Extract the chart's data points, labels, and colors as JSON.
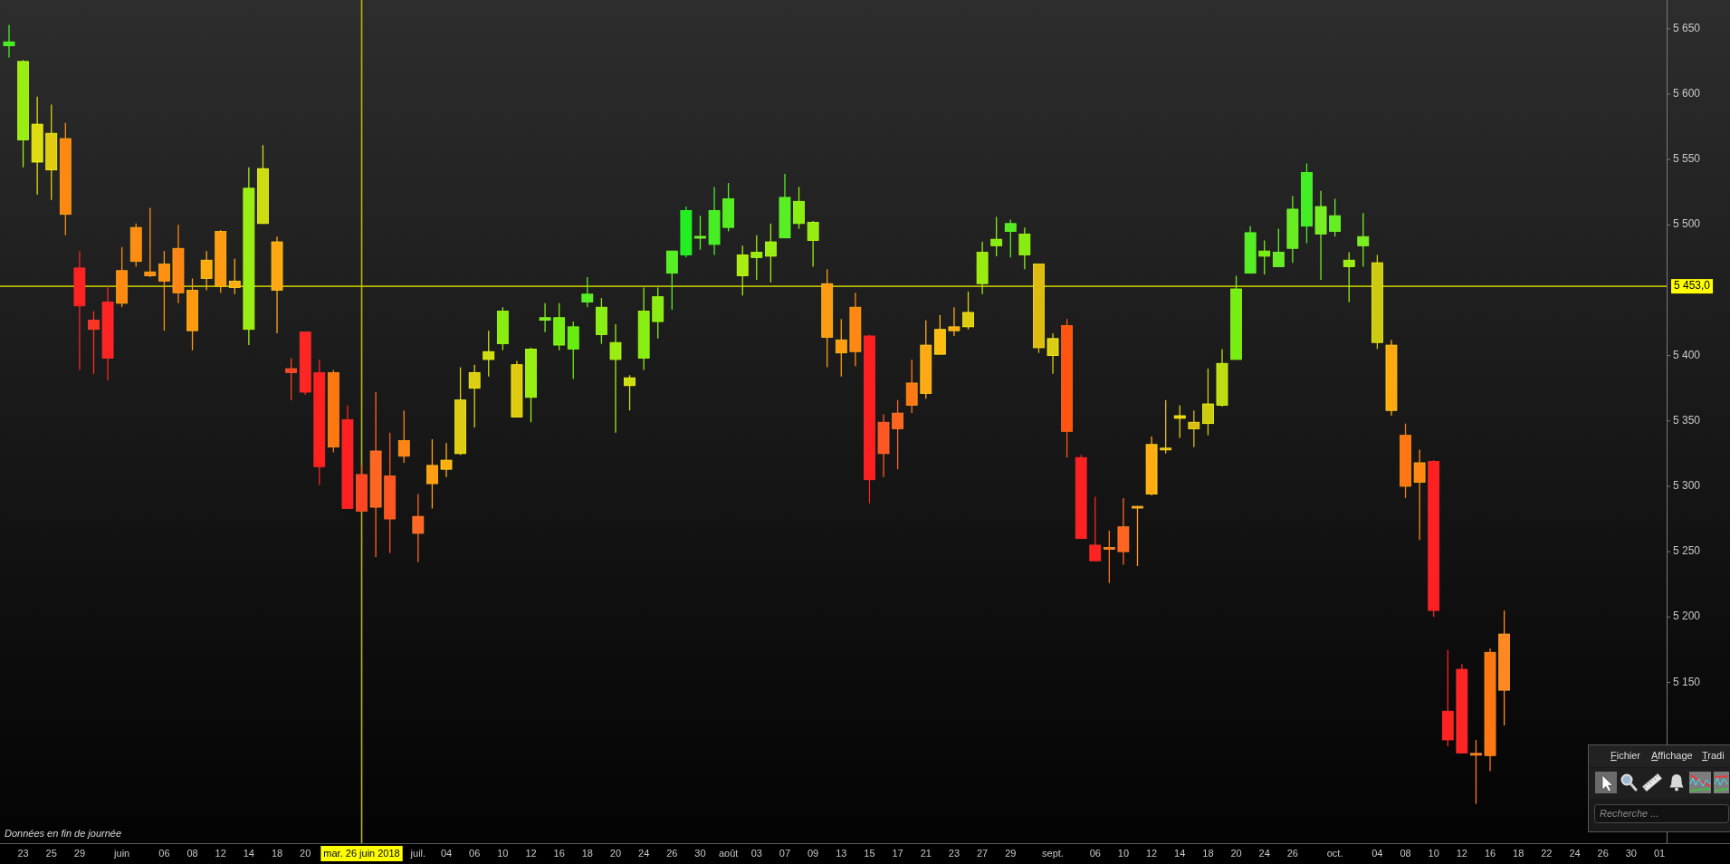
{
  "chart_data": {
    "type": "candlestick",
    "categories": [
      null,
      "23",
      null,
      "25",
      null,
      "29",
      null,
      null,
      "juin",
      null,
      null,
      "06",
      null,
      "08",
      null,
      "12",
      null,
      "14",
      null,
      "18",
      null,
      "20",
      null,
      null,
      null,
      "mar. 26 juin 2018",
      null,
      null,
      null,
      "juil.",
      null,
      "04",
      null,
      "06",
      null,
      "10",
      null,
      "12",
      null,
      "16",
      null,
      "18",
      null,
      "20",
      null,
      "24",
      null,
      "26",
      null,
      "30",
      null,
      "août",
      null,
      "03",
      null,
      "07",
      null,
      "09",
      null,
      "13",
      null,
      "15",
      null,
      "17",
      null,
      "21",
      null,
      "23",
      null,
      "27",
      null,
      "29",
      null,
      null,
      "sept.",
      null,
      null,
      "06",
      null,
      "10",
      null,
      "12",
      null,
      "14",
      null,
      "18",
      null,
      "20",
      null,
      "24",
      null,
      "26",
      null,
      null,
      "oct.",
      null,
      null,
      "04",
      null,
      "08",
      null,
      "10",
      null,
      "12",
      null,
      "16",
      null,
      "18",
      null,
      "22",
      null,
      "24",
      null,
      "26",
      null,
      "30",
      null,
      "01"
    ],
    "ohlc": [
      [
        5637,
        5653,
        5628,
        5640
      ],
      [
        5625,
        5626,
        5544,
        5565
      ],
      [
        5577,
        5598,
        5523,
        5548
      ],
      [
        5570,
        5592,
        5519,
        5542
      ],
      [
        5566,
        5578,
        5492,
        5508
      ],
      [
        5467,
        5480,
        5389,
        5438
      ],
      [
        5427,
        5434,
        5386,
        5420
      ],
      [
        5441,
        5453,
        5381,
        5398
      ],
      [
        5440,
        5483,
        5437,
        5465
      ],
      [
        5472,
        5501,
        5468,
        5498
      ],
      [
        5464,
        5513,
        5460,
        5461
      ],
      [
        5457,
        5480,
        5419,
        5470
      ],
      [
        5482,
        5500,
        5440,
        5448
      ],
      [
        5450,
        5459,
        5404,
        5419
      ],
      [
        5459,
        5480,
        5450,
        5473
      ],
      [
        5495,
        5496,
        5448,
        5453
      ],
      [
        5452,
        5474,
        5447,
        5457
      ],
      [
        5420,
        5544,
        5408,
        5528
      ],
      [
        5543,
        5561,
        5501,
        5501
      ],
      [
        5487,
        5491,
        5417,
        5450
      ],
      [
        5390,
        5398,
        5366,
        5387
      ],
      [
        5372,
        5418,
        5370,
        5418
      ],
      [
        5387,
        5397,
        5301,
        5315
      ],
      [
        5330,
        5389,
        5326,
        5387
      ],
      [
        5351,
        5362,
        5283,
        5283
      ],
      [
        5281,
        5316,
        5281,
        5309
      ],
      [
        5327,
        5372,
        5246,
        5284
      ],
      [
        5275,
        5341,
        5249,
        5308
      ],
      [
        5323,
        5358,
        5318,
        5335
      ],
      [
        5277,
        5294,
        5242,
        5264
      ],
      [
        5302,
        5336,
        5283,
        5316
      ],
      [
        5313,
        5333,
        5307,
        5320
      ],
      [
        5325,
        5391,
        5324,
        5366
      ],
      [
        5375,
        5393,
        5345,
        5387
      ],
      [
        5397,
        5419,
        5384,
        5403
      ],
      [
        5409,
        5437,
        5404,
        5434
      ],
      [
        5393,
        5396,
        5353,
        5353
      ],
      [
        5368,
        5406,
        5349,
        5405
      ],
      [
        5427,
        5440,
        5418,
        5429
      ],
      [
        5429,
        5440,
        5404,
        5408
      ],
      [
        5405,
        5426,
        5382,
        5422
      ],
      [
        5441,
        5460,
        5437,
        5447
      ],
      [
        5437,
        5444,
        5409,
        5416
      ],
      [
        5410,
        5424,
        5341,
        5397
      ],
      [
        5383,
        5385,
        5358,
        5377
      ],
      [
        5398,
        5452,
        5389,
        5434
      ],
      [
        5426,
        5452,
        5413,
        5445
      ],
      [
        5463,
        5480,
        5435,
        5480
      ],
      [
        5477,
        5514,
        5475,
        5511
      ],
      [
        5491,
        5507,
        5481,
        5490
      ],
      [
        5485,
        5529,
        5477,
        5511
      ],
      [
        5520,
        5532,
        5495,
        5498
      ],
      [
        5477,
        5484,
        5446,
        5461
      ],
      [
        5475,
        5492,
        5458,
        5479
      ],
      [
        5476,
        5501,
        5456,
        5487
      ],
      [
        5490,
        5539,
        5490,
        5521
      ],
      [
        5518,
        5529,
        5497,
        5501
      ],
      [
        5502,
        5503,
        5468,
        5488
      ],
      [
        5455,
        5466,
        5391,
        5414
      ],
      [
        5412,
        5428,
        5384,
        5402
      ],
      [
        5403,
        5448,
        5392,
        5437
      ],
      [
        5415,
        5416,
        5287,
        5305
      ],
      [
        5325,
        5355,
        5307,
        5349
      ],
      [
        5344,
        5366,
        5313,
        5356
      ],
      [
        5362,
        5397,
        5356,
        5379
      ],
      [
        5371,
        5427,
        5367,
        5408
      ],
      [
        5401,
        5431,
        5401,
        5420
      ],
      [
        5419,
        5437,
        5415,
        5422
      ],
      [
        5422,
        5449,
        5420,
        5433
      ],
      [
        5455,
        5487,
        5447,
        5479
      ],
      [
        5484,
        5506,
        5476,
        5489
      ],
      [
        5495,
        5504,
        5475,
        5501
      ],
      [
        5493,
        5498,
        5466,
        5477
      ],
      [
        5470,
        5470,
        5402,
        5406
      ],
      [
        5400,
        5417,
        5386,
        5413
      ],
      [
        5423,
        5428,
        5322,
        5342
      ],
      [
        5322,
        5324,
        5260,
        5260
      ],
      [
        5255,
        5292,
        5243,
        5243
      ],
      [
        5253,
        5266,
        5226,
        5252
      ],
      [
        5250,
        5291,
        5240,
        5269
      ],
      [
        5284,
        5285,
        5239,
        5284
      ],
      [
        5294,
        5338,
        5293,
        5332
      ],
      [
        5329,
        5366,
        5325,
        5328
      ],
      [
        5352,
        5362,
        5337,
        5354
      ],
      [
        5349,
        5358,
        5330,
        5344
      ],
      [
        5348,
        5390,
        5339,
        5363
      ],
      [
        5362,
        5405,
        5361,
        5394
      ],
      [
        5397,
        5461,
        5397,
        5451
      ],
      [
        5463,
        5499,
        5463,
        5494
      ],
      [
        5480,
        5488,
        5462,
        5476
      ],
      [
        5479,
        5497,
        5468,
        5468
      ],
      [
        5482,
        5522,
        5471,
        5512
      ],
      [
        5499,
        5547,
        5486,
        5540
      ],
      [
        5514,
        5526,
        5458,
        5493
      ],
      [
        5495,
        5520,
        5491,
        5507
      ],
      [
        5473,
        5479,
        5441,
        5468
      ],
      [
        5484,
        5509,
        5468,
        5491
      ],
      [
        5471,
        5477,
        5405,
        5410
      ],
      [
        5408,
        5412,
        5354,
        5358
      ],
      [
        5339,
        5348,
        5291,
        5300
      ],
      [
        5303,
        5328,
        5259,
        5318
      ],
      [
        5319,
        5320,
        5200,
        5205
      ],
      [
        5128,
        5175,
        5101,
        5106
      ],
      [
        5160,
        5164,
        5096,
        5096
      ],
      [
        5095,
        5106,
        5057,
        5095
      ],
      [
        5094,
        5176,
        5082,
        5173
      ],
      [
        5187,
        5205,
        5117,
        5144
      ],
      null,
      null,
      null,
      null,
      null,
      null,
      null,
      null,
      null,
      null,
      null
    ],
    "colors": [
      "#44ee22",
      "#99ee11",
      "#dddd11",
      "#ddcc11",
      "#ff8811",
      "#ff2222",
      "#ff3322",
      "#ff2424",
      "#ff8a12",
      "#ff8c14",
      "#ff8e13",
      "#ff9012",
      "#ff8614",
      "#ff9911",
      "#ffaa11",
      "#ff9b12",
      "#ffac13",
      "#99ee13",
      "#ccdd11",
      "#ffa812",
      "#ff4422",
      "#ff2623",
      "#ff2020",
      "#ff7711",
      "#ff2121",
      "#ff4624",
      "#ff6622",
      "#ff5522",
      "#ff8416",
      "#ff6824",
      "#ff9d13",
      "#ffae12",
      "#ddcc13",
      "#dcce12",
      "#ccdd13",
      "#88ee11",
      "#deca11",
      "#98ef12",
      "#77ee22",
      "#77ee11",
      "#66ee11",
      "#55ee22",
      "#88ee13",
      "#9aed11",
      "#cbde12",
      "#87ef12",
      "#89ed12",
      "#56ef23",
      "#22ee22",
      "#66ee22",
      "#45ef23",
      "#54ed21",
      "#aaee11",
      "#97ee13",
      "#9bee12",
      "#57ee22",
      "#8aee11",
      "#96ed12",
      "#ff9a14",
      "#ff9c11",
      "#ff8812",
      "#fe2020",
      "#ff5724",
      "#ff6420",
      "#ff7913",
      "#ffa914",
      "#ffbb11",
      "#ffab15",
      "#ddcb12",
      "#99ec11",
      "#86ee13",
      "#55ec22",
      "#88ec12",
      "#ddbb11",
      "#dccc14",
      "#ff5511",
      "#fd2121",
      "#ff2322",
      "#ff7722",
      "#ff6521",
      "#ff9922",
      "#ffad11",
      "#eebb11",
      "#eecc11",
      "#dcbc12",
      "#cccc11",
      "#bbdd11",
      "#77ee13",
      "#55ee24",
      "#76ef12",
      "#66ee24",
      "#67ed22",
      "#44ee24",
      "#77ee24",
      "#65ef22",
      "#99ee15",
      "#78ed22",
      "#cbcb12",
      "#ffa911",
      "#ff7612",
      "#ff8913",
      "#ff2022",
      "#fe2222",
      "#ff2525",
      "#ff7822",
      "#ff7713",
      "#ff8822",
      null,
      null,
      null,
      null,
      null,
      null,
      null,
      null,
      null,
      null,
      null
    ],
    "ylim": [
      5027,
      5672
    ],
    "yticks": [
      {
        "value": 5150,
        "label": "5 150"
      },
      {
        "value": 5200,
        "label": "5 200"
      },
      {
        "value": 5250,
        "label": "5 250"
      },
      {
        "value": 5300,
        "label": "5 300"
      },
      {
        "value": 5350,
        "label": "5 350"
      },
      {
        "value": 5400,
        "label": "5 400"
      },
      {
        "value": 5500,
        "label": "5 500"
      },
      {
        "value": 5550,
        "label": "5 550"
      },
      {
        "value": 5600,
        "label": "5 600"
      },
      {
        "value": 5650,
        "label": "5 650"
      }
    ],
    "ref_lines": [
      {
        "axis": "y",
        "value": 5453,
        "label": "5 453,0",
        "color": "#b8b800"
      },
      {
        "axis": "x",
        "value": "mar. 26 juin 2018",
        "color": "#b8b800"
      }
    ],
    "annotations": [
      "Données en fin de journée",
      "Fichier",
      "Affichage",
      "Tradi",
      "Recherche ..."
    ]
  }
}
